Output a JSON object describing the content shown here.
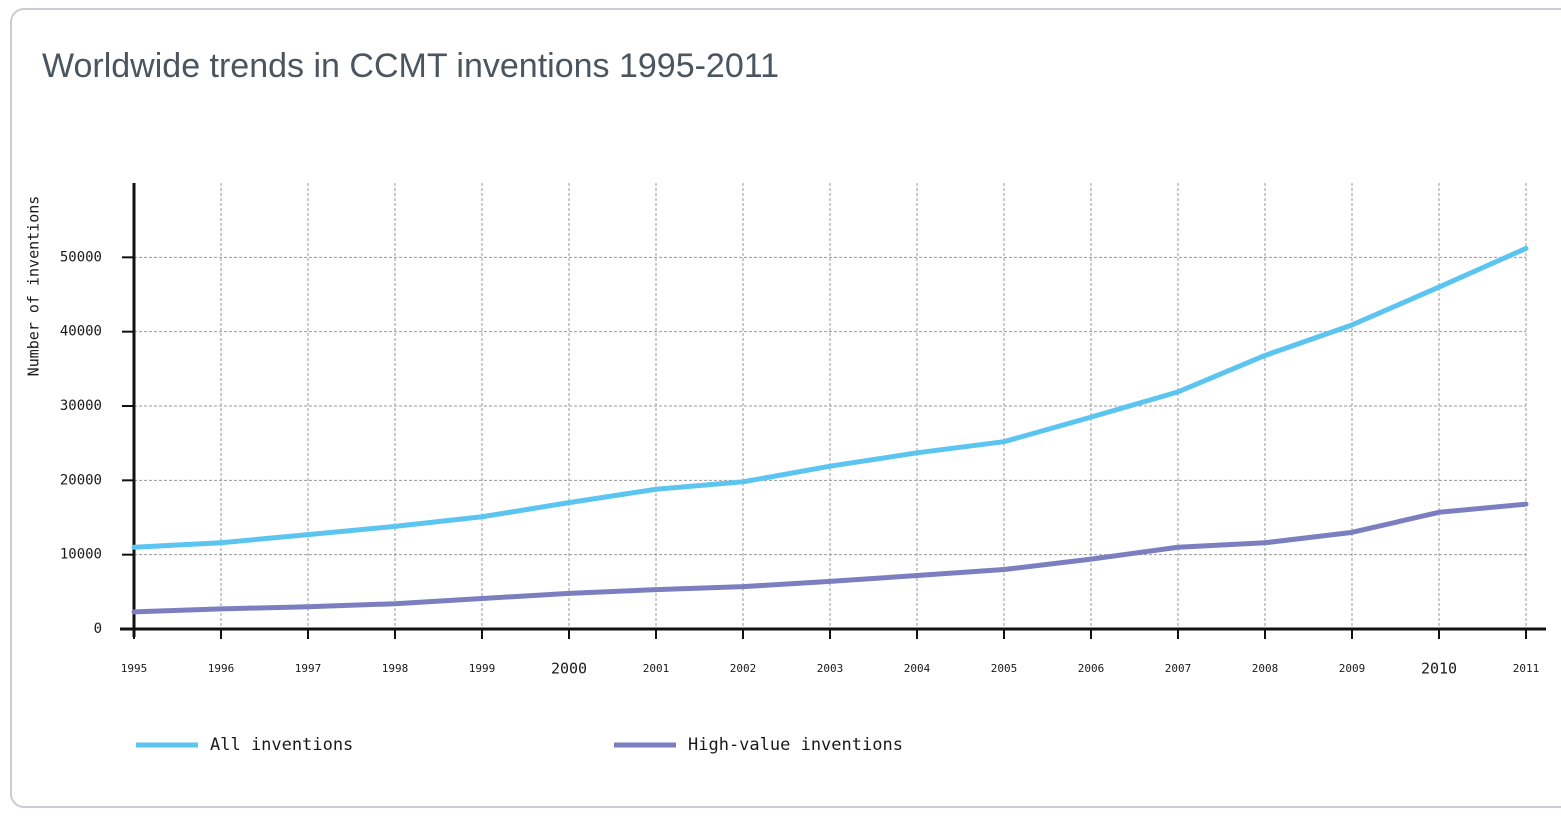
{
  "chart_data": {
    "type": "line",
    "title": "Worldwide trends in CCMT inventions 1995-2011",
    "y_label": "Number of inventions",
    "x": [
      1995,
      1996,
      1997,
      1998,
      1999,
      2000,
      2001,
      2002,
      2003,
      2004,
      2005,
      2006,
      2007,
      2008,
      2009,
      2010,
      2011
    ],
    "xlim": [
      1995,
      2011
    ],
    "xticks": [
      1995,
      1996,
      1997,
      1998,
      1999,
      2000,
      2001,
      2002,
      2003,
      2004,
      2005,
      2006,
      2007,
      2008,
      2009,
      2010,
      2011
    ],
    "ylim": [
      0,
      60000
    ],
    "yticks": [
      0,
      10000,
      20000,
      30000,
      40000,
      50000
    ],
    "grid": true,
    "legend": "bottom",
    "series": [
      {
        "name": "All inventions",
        "color": "#5bc5f0",
        "values": [
          11000,
          11600,
          12700,
          13800,
          15100,
          17000,
          18800,
          19800,
          21900,
          23700,
          25200,
          28500,
          31900,
          36800,
          40900,
          46000,
          51200
        ]
      },
      {
        "name": "High-value inventions",
        "color": "#7b7fc0",
        "values": [
          2300,
          2700,
          3000,
          3400,
          4100,
          4800,
          5300,
          5700,
          6400,
          7200,
          8000,
          9400,
          11000,
          11600,
          13000,
          15700,
          16800
        ]
      }
    ]
  }
}
